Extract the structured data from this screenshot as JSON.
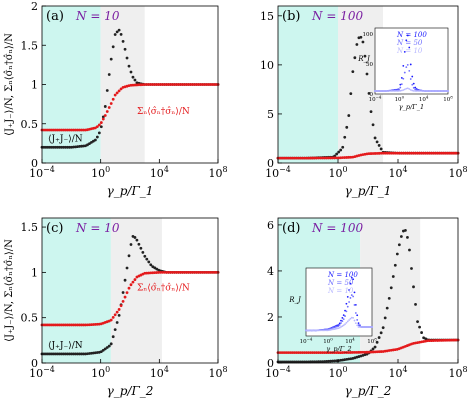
{
  "chart_data": [
    {
      "type": "scatter",
      "panel_label": "(a)",
      "annotation": "N = 10",
      "xlabel": "γ_p/Γ_1",
      "ylabel": "⟨J₊J₋⟩/N, Σₙ⟨σ̂ₙ†σ̂ₙ⟩/N",
      "x_scale": "log",
      "xlim": [
        0.0001,
        100000000
      ],
      "ylim": [
        0,
        2
      ],
      "x_ticks": [
        "10^-4",
        "10^0",
        "10^4",
        "10^8"
      ],
      "y_ticks": [
        "0",
        "0.5",
        "1",
        "1.5",
        "2"
      ],
      "shaded_regions": [
        {
          "from": 0.0001,
          "to": 1,
          "color": "#cdf6ef"
        },
        {
          "from": 1,
          "to": 1000,
          "color": "#efefef"
        }
      ],
      "series": [
        {
          "name": "⟨J₊J₋⟩/N",
          "color": "#222222",
          "x": [
            0.0001,
            0.001,
            0.01,
            0.1,
            0.5,
            1,
            2,
            5,
            10,
            20,
            40,
            80,
            150,
            300,
            1000,
            10000,
            100000,
            1000000,
            100000000
          ],
          "y": [
            0.2,
            0.2,
            0.2,
            0.22,
            0.3,
            0.42,
            0.7,
            1.3,
            1.65,
            1.7,
            1.5,
            1.25,
            1.1,
            1.02,
            1.0,
            1.0,
            1.0,
            1.0,
            1.0
          ]
        },
        {
          "name": "Σₙ⟨σ̂ₙ†σ̂ₙ⟩/N",
          "color": "#e41a1c",
          "x": [
            0.0001,
            0.001,
            0.01,
            0.1,
            0.5,
            1,
            2,
            5,
            10,
            30,
            100,
            1000,
            10000,
            100000,
            1000000,
            100000000
          ],
          "y": [
            0.42,
            0.42,
            0.42,
            0.42,
            0.45,
            0.5,
            0.6,
            0.75,
            0.87,
            0.96,
            0.99,
            1.0,
            1.0,
            1.0,
            1.0,
            1.0
          ]
        }
      ],
      "series_labels": [
        "⟨J₊J₋⟩/N",
        "Σₙ⟨σ̂ₙ†σ̂ₙ⟩/N"
      ]
    },
    {
      "type": "scatter",
      "panel_label": "(b)",
      "annotation": "N = 100",
      "xlabel": "γ_p/Γ_1",
      "x_scale": "log",
      "xlim": [
        0.0001,
        100000000
      ],
      "ylim": [
        0,
        16
      ],
      "x_ticks": [
        "10^-4",
        "10^0",
        "10^4",
        "10^8"
      ],
      "y_ticks": [
        "0",
        "5",
        "10",
        "15"
      ],
      "shaded_regions": [
        {
          "from": 0.0001,
          "to": 1,
          "color": "#cdf6ef"
        },
        {
          "from": 1,
          "to": 1000,
          "color": "#efefef"
        }
      ],
      "series": [
        {
          "name": "⟨J₊J₋⟩/N",
          "color": "#222222",
          "x": [
            0.0001,
            0.01,
            0.5,
            2,
            5,
            10,
            20,
            30,
            50,
            80,
            150,
            300,
            1000,
            10000,
            1000000,
            100000000
          ],
          "y": [
            0.5,
            0.5,
            0.6,
            1.5,
            4.5,
            9.5,
            12.5,
            13.0,
            12.2,
            9.5,
            5.5,
            2.5,
            1.1,
            1.0,
            1.0,
            1.0
          ]
        },
        {
          "name": "Σₙ⟨σ̂ₙ†σ̂ₙ⟩/N",
          "color": "#e41a1c",
          "x": [
            0.0001,
            0.01,
            1,
            10,
            30,
            100,
            1000,
            10000,
            1000000,
            100000000
          ],
          "y": [
            0.5,
            0.5,
            0.52,
            0.6,
            0.8,
            0.95,
            1.0,
            1.0,
            1.0,
            1.0
          ]
        }
      ],
      "inset": {
        "ylabel": "R_J",
        "xlabel": "γ_p/Γ_1",
        "x_ticks": [
          "10^-4",
          "10^0",
          "10^4",
          "10^8"
        ],
        "y_ticks": [
          "0",
          "50",
          "100"
        ],
        "legend": [
          "N = 100",
          "N = 50",
          "N = 10"
        ],
        "legend_colors": [
          "#1a1aff",
          "#6f6fff",
          "#b8b8ff"
        ],
        "curves": [
          {
            "name": "N = 100",
            "x": [
              0.0001,
              0.01,
              1,
              3,
              10,
              20,
              30,
              50,
              100,
              300,
              1000,
              10000,
              100000000
            ],
            "y": [
              5,
              5,
              8,
              30,
              80,
              100,
              95,
              70,
              35,
              12,
              7,
              5,
              5
            ]
          },
          {
            "name": "N = 50",
            "x": [
              0.0001,
              0.01,
              1,
              3,
              10,
              20,
              30,
              50,
              100,
              300,
              1000,
              10000,
              100000000
            ],
            "y": [
              5,
              5,
              7,
              18,
              40,
              50,
              47,
              35,
              18,
              8,
              6,
              5,
              5
            ]
          },
          {
            "name": "N = 10",
            "x": [
              0.0001,
              0.01,
              1,
              3,
              10,
              20,
              30,
              50,
              100,
              300,
              1000,
              10000,
              100000000
            ],
            "y": [
              5,
              5,
              5,
              6,
              8,
              10,
              9,
              8,
              6,
              5,
              5,
              5,
              5
            ]
          }
        ]
      }
    },
    {
      "type": "scatter",
      "panel_label": "(c)",
      "annotation": "N = 10",
      "xlabel": "γ_p/Γ_2",
      "ylabel": "⟨J₊J₋⟩/N, Σₙ⟨σ̂ₙ†σ̂ₙ⟩/N",
      "x_scale": "log",
      "xlim": [
        0.0001,
        100000000
      ],
      "ylim": [
        0,
        1.6
      ],
      "x_ticks": [
        "10^-4",
        "10^0",
        "10^4",
        "10^8"
      ],
      "y_ticks": [
        "0",
        "0.5",
        "1",
        "1.5"
      ],
      "shaded_regions": [
        {
          "from": 0.0001,
          "to": 5,
          "color": "#cdf6ef"
        },
        {
          "from": 5,
          "to": 15000,
          "color": "#efefef"
        }
      ],
      "series": [
        {
          "name": "⟨J₊J₋⟩/N",
          "color": "#222222",
          "x": [
            0.0001,
            0.001,
            0.01,
            0.1,
            1,
            5,
            20,
            50,
            100,
            150,
            250,
            500,
            1000,
            3000,
            10000,
            30000,
            100000,
            1000000,
            100000000
          ],
          "y": [
            0.1,
            0.1,
            0.1,
            0.1,
            0.12,
            0.2,
            0.55,
            0.95,
            1.25,
            1.4,
            1.38,
            1.28,
            1.18,
            1.07,
            1.02,
            1.0,
            1.0,
            1.0,
            1.0
          ]
        },
        {
          "name": "Σₙ⟨σ̂ₙ†σ̂ₙ⟩/N",
          "color": "#e41a1c",
          "x": [
            0.0001,
            0.001,
            0.01,
            0.1,
            1,
            5,
            20,
            50,
            100,
            300,
            1000,
            10000,
            100000,
            1000000,
            100000000
          ],
          "y": [
            0.42,
            0.42,
            0.42,
            0.42,
            0.43,
            0.47,
            0.6,
            0.74,
            0.85,
            0.95,
            0.99,
            1.0,
            1.0,
            1.0,
            1.0
          ]
        }
      ],
      "series_labels": [
        "⟨J₊J₋⟩/N",
        "Σₙ⟨σ̂ₙ†σ̂ₙ⟩/N"
      ]
    },
    {
      "type": "scatter",
      "panel_label": "(d)",
      "annotation": "N = 100",
      "xlabel": "γ_p/Γ_2",
      "x_scale": "log",
      "xlim": [
        0.0001,
        100000000
      ],
      "ylim": [
        0,
        6.3
      ],
      "x_ticks": [
        "10^-4",
        "10^0",
        "10^4",
        "10^8"
      ],
      "y_ticks": [
        "0",
        "2",
        "4",
        "6"
      ],
      "shaded_regions": [
        {
          "from": 0.0001,
          "to": 30,
          "color": "#cdf6ef"
        },
        {
          "from": 30,
          "to": 300000,
          "color": "#efefef"
        }
      ],
      "series": [
        {
          "name": "⟨J₊J₋⟩/N",
          "color": "#222222",
          "x": [
            0.0001,
            0.001,
            0.01,
            0.1,
            1,
            10,
            100,
            300,
            1000,
            3000,
            10000,
            20000,
            30000,
            50000,
            100000,
            200000,
            500000,
            1000000,
            100000000
          ],
          "y": [
            0.05,
            0.05,
            0.05,
            0.06,
            0.1,
            0.2,
            0.4,
            0.7,
            1.5,
            3.0,
            4.9,
            5.7,
            5.8,
            5.3,
            3.5,
            1.8,
            1.1,
            1.0,
            1.0
          ]
        },
        {
          "name": "Σₙ⟨σ̂ₙ†σ̂ₙ⟩/N",
          "color": "#e41a1c",
          "x": [
            0.0001,
            0.01,
            1,
            100,
            1000,
            10000,
            100000,
            1000000,
            100000000
          ],
          "y": [
            0.45,
            0.45,
            0.45,
            0.47,
            0.5,
            0.6,
            0.85,
            0.97,
            1.0
          ]
        }
      ],
      "inset": {
        "ylabel": "R_J",
        "xlabel": "γ_p/Γ_2",
        "x_ticks": [
          "10^-4",
          "10^0",
          "10^4",
          "10^8"
        ],
        "legend": [
          "N = 100",
          "N = 50",
          "N = 10"
        ],
        "legend_colors": [
          "#1a1aff",
          "#6f6fff",
          "#b8b8ff"
        ],
        "curves": [
          {
            "name": "N = 100",
            "x": [
              0.0001,
              0.01,
              1,
              100,
              1000,
              10000,
              30000,
              100000,
              300000,
              1000000,
              100000000
            ],
            "y": [
              0.5,
              0.5,
              0.6,
              1,
              2,
              4.5,
              5.5,
              3,
              1.2,
              0.8,
              0.8
            ]
          },
          {
            "name": "N = 50",
            "x": [
              0.0001,
              0.01,
              1,
              100,
              1000,
              10000,
              30000,
              100000,
              300000,
              1000000,
              100000000
            ],
            "y": [
              0.5,
              0.5,
              0.6,
              0.9,
              1.6,
              3.3,
              3.8,
              2.2,
              1.0,
              0.8,
              0.8
            ]
          },
          {
            "name": "N = 10",
            "x": [
              0.0001,
              0.01,
              1,
              100,
              1000,
              10000,
              30000,
              100000,
              300000,
              1000000,
              100000000
            ],
            "y": [
              0.5,
              0.5,
              0.5,
              0.7,
              1.0,
              1.5,
              1.7,
              1.2,
              0.8,
              0.8,
              0.8
            ]
          }
        ]
      }
    }
  ]
}
